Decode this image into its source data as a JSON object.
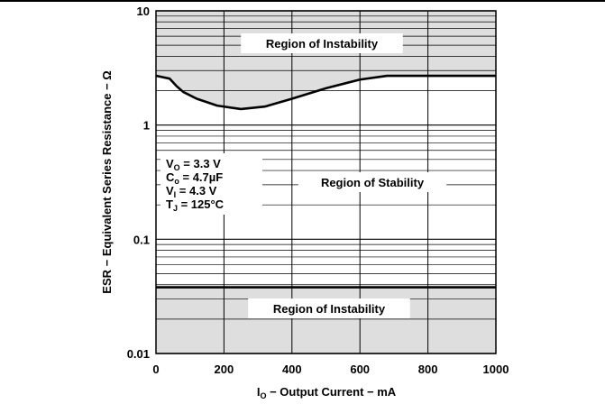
{
  "chart_data": {
    "type": "line",
    "xlabel": {
      "main": "I",
      "sub": "O",
      "rest": " − Output Current − mA"
    },
    "ylabel": "ESR − Equivalent Series Resistance − Ω",
    "x_ticks": [
      0,
      200,
      400,
      600,
      800,
      1000
    ],
    "x_tick_labels": [
      "0",
      "200",
      "400",
      "600",
      "800",
      "1000"
    ],
    "y_ticks": [
      0.01,
      0.1,
      1,
      10
    ],
    "y_tick_labels": [
      "0.01",
      "0.1",
      "1",
      "10"
    ],
    "xlim": [
      0,
      1000
    ],
    "ylim": [
      0.01,
      10
    ],
    "y_scale": "log",
    "grid": true,
    "regions": [
      {
        "label": "Region of Instability",
        "range": "upper"
      },
      {
        "label": "Region of Stability",
        "range": "middle"
      },
      {
        "label": "Region of Instability",
        "range": "lower"
      }
    ],
    "series": [
      {
        "role": "upper-boundary",
        "x": [
          0,
          40,
          60,
          80,
          120,
          180,
          250,
          320,
          400,
          500,
          600,
          680,
          1000
        ],
        "y": [
          2.7,
          2.55,
          2.2,
          1.95,
          1.7,
          1.48,
          1.38,
          1.45,
          1.7,
          2.1,
          2.5,
          2.7,
          2.7
        ]
      },
      {
        "role": "lower-boundary",
        "x": [
          0,
          1000
        ],
        "y": [
          0.038,
          0.038
        ]
      }
    ],
    "conditions": [
      {
        "main": "V",
        "sub": "O",
        "rest": " = 3.3 V"
      },
      {
        "main": "C",
        "sub": "o",
        "rest": " = 4.7µF"
      },
      {
        "main": "V",
        "sub": "I",
        "rest": " = 4.3 V"
      },
      {
        "main": "T",
        "sub": "J",
        "rest": " = 125°C"
      }
    ]
  }
}
